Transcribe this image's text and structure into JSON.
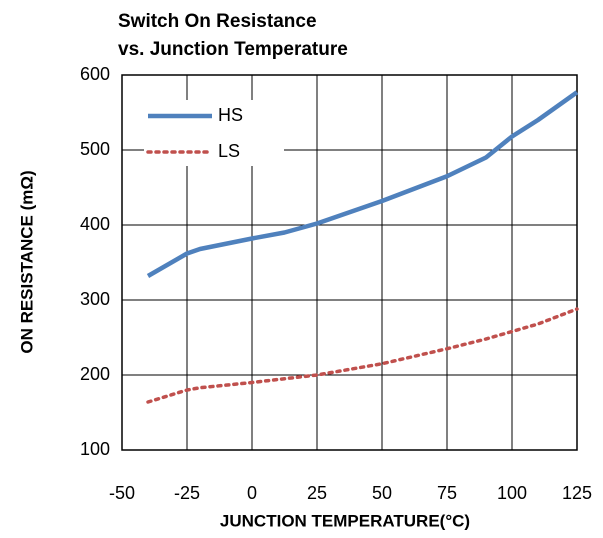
{
  "chart_data": {
    "type": "line",
    "title": [
      "Switch On Resistance",
      "vs. Junction  Temperature"
    ],
    "xlabel": "JUNCTION TEMPERATURE(°C)",
    "ylabel": "ON RESISTANCE (mΩ)",
    "x": [
      -40,
      -25,
      -20,
      0,
      12.5,
      25,
      50,
      75,
      90,
      100,
      110,
      125
    ],
    "series": [
      {
        "name": "HS",
        "color": "#4f81bd",
        "style": "solid",
        "values": [
          332,
          362,
          368,
          382,
          390,
          402,
          432,
          465,
          490,
          518,
          540,
          577
        ]
      },
      {
        "name": "LS",
        "color": "#c0504d",
        "style": "dotted",
        "values": [
          164,
          180,
          183,
          190,
          195,
          200,
          215,
          235,
          248,
          258,
          268,
          288
        ]
      }
    ],
    "xlim": [
      -50,
      125
    ],
    "xticks": [
      -50,
      -25,
      0,
      25,
      50,
      75,
      100,
      125
    ],
    "ylim": [
      100,
      600
    ],
    "yticks": [
      100,
      200,
      300,
      400,
      500,
      600
    ],
    "grid": true,
    "legend": "upper left"
  }
}
